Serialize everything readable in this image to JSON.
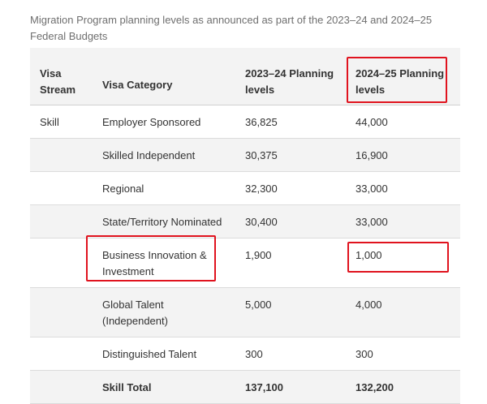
{
  "caption": "Migration Program planning levels as announced as part of the 2023–24 and 2024–25 Federal Budgets",
  "table": {
    "headers": [
      "Visa Stream",
      "Visa Category",
      "2023–24 Planning levels",
      "2024–25 Planning levels"
    ],
    "rows": [
      {
        "stream": "Skill",
        "category": "Employer Sponsored",
        "y2023": "36,825",
        "y2024": "44,000"
      },
      {
        "stream": "",
        "category": "Skilled Independent",
        "y2023": "30,375",
        "y2024": "16,900"
      },
      {
        "stream": "",
        "category": "Regional",
        "y2023": "32,300",
        "y2024": "33,000"
      },
      {
        "stream": "",
        "category": "State/Territory Nominated",
        "y2023": "30,400",
        "y2024": "33,000"
      },
      {
        "stream": "",
        "category": "Business Innovation & Investment",
        "y2023": "1,900",
        "y2024": "1,000"
      },
      {
        "stream": "",
        "category": "Global Talent (Independent)",
        "y2023": "5,000",
        "y2024": "4,000"
      },
      {
        "stream": "",
        "category": "Distinguished Talent",
        "y2023": "300",
        "y2024": "300"
      },
      {
        "stream": "",
        "category": "Skill Total",
        "y2023": "137,100",
        "y2024": "132,200"
      }
    ]
  },
  "colors": {
    "highlight": "#e0131e",
    "row_shade": "#f3f3f3",
    "border": "#dcdcdc"
  }
}
